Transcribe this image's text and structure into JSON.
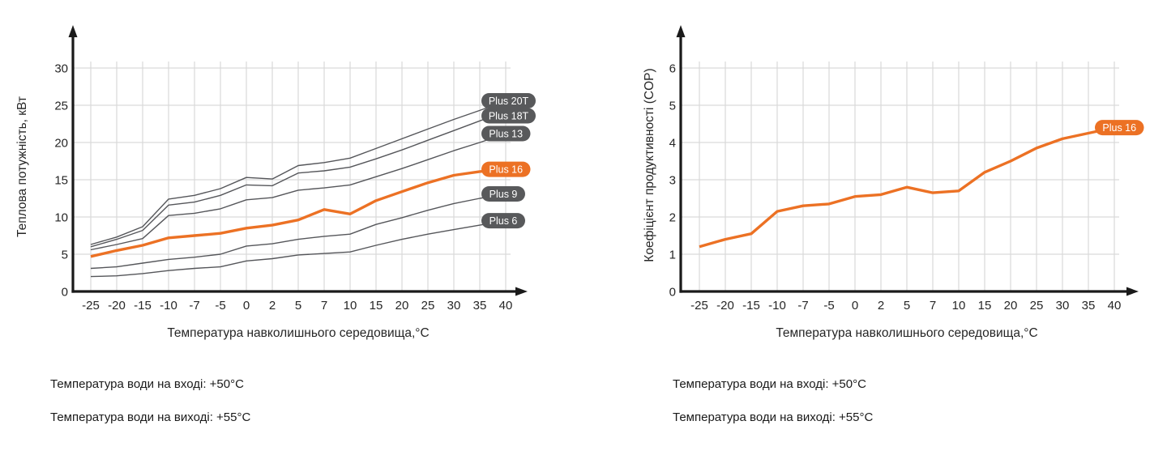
{
  "page": {
    "background": "#FFFFFF"
  },
  "colors": {
    "accent_orange": "#EC7124",
    "line_gray": "#55565A",
    "grid": "#D9D9D9",
    "axis": "#1A1A1A",
    "pill_gray": "#58595B",
    "pill_text": "#FFFFFF",
    "text": "#262626"
  },
  "chart_data": [
    {
      "type": "line",
      "title": "",
      "xlabel": "Температура навколишнього середовища,°C",
      "ylabel": "Теплова потужність, кВт",
      "categories": [
        -25,
        -20,
        -15,
        -10,
        -7,
        -5,
        0,
        2,
        5,
        7,
        10,
        15,
        20,
        25,
        30,
        35,
        40
      ],
      "ylim": [
        0,
        30
      ],
      "ytick_step": 5,
      "grid": true,
      "legend_position": "pill labels at right end of each line",
      "series": [
        {
          "name": "Plus 20T",
          "color": "#55565A",
          "emphasis": false,
          "values": [
            6.3,
            7.3,
            8.7,
            12.4,
            12.9,
            13.8,
            15.3,
            15.1,
            16.9,
            17.3,
            17.9,
            19.2,
            20.5,
            21.8,
            23.1,
            24.3,
            25.6
          ]
        },
        {
          "name": "Plus 18T",
          "color": "#55565A",
          "emphasis": false,
          "values": [
            6.0,
            7.0,
            8.2,
            11.6,
            12.0,
            12.9,
            14.3,
            14.2,
            15.9,
            16.2,
            16.7,
            17.8,
            19.0,
            20.3,
            21.6,
            22.9,
            24.2
          ]
        },
        {
          "name": "Plus 13",
          "color": "#55565A",
          "emphasis": false,
          "values": [
            5.6,
            6.3,
            7.1,
            10.2,
            10.5,
            11.1,
            12.3,
            12.6,
            13.6,
            13.9,
            14.3,
            15.4,
            16.5,
            17.7,
            18.9,
            20.0,
            21.2
          ]
        },
        {
          "name": "Plus 16",
          "color": "#EC7124",
          "emphasis": true,
          "values": [
            4.7,
            5.5,
            6.2,
            7.2,
            7.5,
            7.8,
            8.5,
            8.9,
            9.6,
            11.0,
            10.4,
            12.2,
            13.4,
            14.6,
            15.6,
            16.1,
            16.4
          ]
        },
        {
          "name": "Plus 9",
          "color": "#55565A",
          "emphasis": false,
          "values": [
            3.1,
            3.3,
            3.8,
            4.3,
            4.6,
            5.0,
            6.1,
            6.4,
            7.0,
            7.4,
            7.7,
            9.0,
            9.9,
            10.9,
            11.8,
            12.5,
            13.1
          ]
        },
        {
          "name": "Plus 6",
          "color": "#55565A",
          "emphasis": false,
          "values": [
            2.0,
            2.1,
            2.4,
            2.8,
            3.1,
            3.3,
            4.1,
            4.4,
            4.9,
            5.1,
            5.3,
            6.2,
            7.0,
            7.7,
            8.3,
            8.9,
            9.5
          ]
        }
      ]
    },
    {
      "type": "line",
      "title": "",
      "xlabel": "Температура навколишнього середовища,°C",
      "ylabel": "Коефіцієнт продуктивності (COP)",
      "categories": [
        -25,
        -20,
        -15,
        -10,
        -7,
        -5,
        0,
        2,
        5,
        7,
        10,
        15,
        20,
        25,
        30,
        35,
        40
      ],
      "ylim": [
        0,
        6
      ],
      "ytick_step": 1,
      "grid": true,
      "legend_position": "pill label at right end of line",
      "series": [
        {
          "name": "Plus 16",
          "color": "#EC7124",
          "emphasis": true,
          "values": [
            1.2,
            1.4,
            1.55,
            2.15,
            2.3,
            2.35,
            2.55,
            2.6,
            2.8,
            2.65,
            2.7,
            3.2,
            3.5,
            3.85,
            4.1,
            4.25,
            4.4
          ]
        }
      ]
    }
  ],
  "notes": {
    "left": {
      "inlet": "Температура води на вході: +50°C",
      "outlet": "Температура води на виході: +55°C"
    },
    "right": {
      "inlet": "Температура води на вході: +50°C",
      "outlet": "Температура води на виході: +55°C"
    }
  }
}
